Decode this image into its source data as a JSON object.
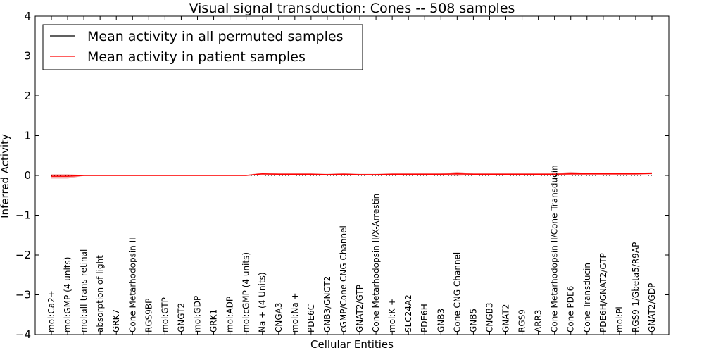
{
  "chart_data": {
    "type": "line",
    "title": "Visual signal transduction: Cones -- 508 samples",
    "xlabel": "Cellular Entities",
    "ylabel": "Inferred Activity",
    "ylim": [
      -4,
      4
    ],
    "yticks": [
      -4,
      -3,
      -2,
      -1,
      0,
      1,
      2,
      3,
      4
    ],
    "ytick_labels": [
      "−4",
      "−3",
      "−2",
      "−1",
      "0",
      "1",
      "2",
      "3",
      "4"
    ],
    "legend_position": "top-left",
    "categories": [
      "mol:Ca2+",
      "mol:GMP (4 units)",
      "mol:all-trans-retinal",
      "absorption of light",
      "GRK7",
      "Cone Metarhodopsin II",
      "RGS9BP",
      "mol:GTP",
      "GNGT2",
      "mol:GDP",
      "GRK1",
      "mol:ADP",
      "mol:cGMP (4 units)",
      "Na + (4 Units)",
      "CNGA3",
      "mol:Na +",
      "PDE6C",
      "GNB3/GNGT2",
      "cGMP/Cone CNG Channel",
      "GNAT2/GTP",
      "Cone Metarhodopsin II/X-Arrestin",
      "mol:K +",
      "SLC24A2",
      "PDE6H",
      "GNB3",
      "Cone CNG Channel",
      "GNB5",
      "CNGB3",
      "GNAT2",
      "RGS9",
      "ARR3",
      "Cone Metarhodopsin II/Cone Transducin",
      "Cone PDE6",
      "Cone Transducin",
      "PDE6H/GNAT2/GTP",
      "mol:Pi",
      "RGS9-1/Gbeta5/R9AP",
      "GNAT2/GDP"
    ],
    "series": [
      {
        "name": "Mean activity in all permuted samples",
        "color": "#000000",
        "style": "dotted",
        "values": [
          0,
          0,
          0,
          0,
          0,
          0,
          0,
          0,
          0,
          0,
          0,
          0,
          0,
          0,
          0,
          0,
          0,
          0,
          0,
          0,
          0,
          0,
          0,
          0,
          0,
          0,
          0,
          0,
          0,
          0,
          0,
          0,
          0,
          0,
          0,
          0,
          0,
          0
        ]
      },
      {
        "name": "Mean activity in patient samples",
        "color": "#ff0000",
        "band_color": "#e87070",
        "style": "solid",
        "values": [
          -0.02,
          -0.02,
          0.0,
          0.0,
          0.0,
          0.0,
          0.0,
          0.0,
          0.0,
          0.0,
          0.0,
          0.0,
          0.0,
          0.04,
          0.03,
          0.03,
          0.03,
          0.02,
          0.03,
          0.02,
          0.02,
          0.03,
          0.03,
          0.03,
          0.03,
          0.04,
          0.03,
          0.03,
          0.03,
          0.03,
          0.03,
          0.03,
          0.04,
          0.04,
          0.04,
          0.04,
          0.04,
          0.05
        ],
        "band_lower": [
          -0.08,
          -0.08,
          -0.01,
          -0.01,
          -0.01,
          -0.01,
          -0.01,
          -0.01,
          -0.01,
          -0.01,
          -0.01,
          -0.01,
          -0.01,
          0.01,
          0.01,
          0.01,
          0.01,
          0.01,
          0.0,
          0.01,
          0.01,
          0.01,
          0.01,
          0.01,
          0.01,
          -0.01,
          0.01,
          0.01,
          0.01,
          0.01,
          0.01,
          0.01,
          0.0,
          0.02,
          0.02,
          0.02,
          0.02,
          0.03
        ],
        "band_upper": [
          0.03,
          0.03,
          0.01,
          0.01,
          0.01,
          0.01,
          0.01,
          0.01,
          0.01,
          0.01,
          0.01,
          0.01,
          0.01,
          0.07,
          0.05,
          0.05,
          0.05,
          0.04,
          0.06,
          0.04,
          0.04,
          0.05,
          0.05,
          0.05,
          0.05,
          0.09,
          0.05,
          0.05,
          0.05,
          0.05,
          0.05,
          0.05,
          0.09,
          0.06,
          0.06,
          0.06,
          0.06,
          0.08
        ]
      }
    ]
  }
}
